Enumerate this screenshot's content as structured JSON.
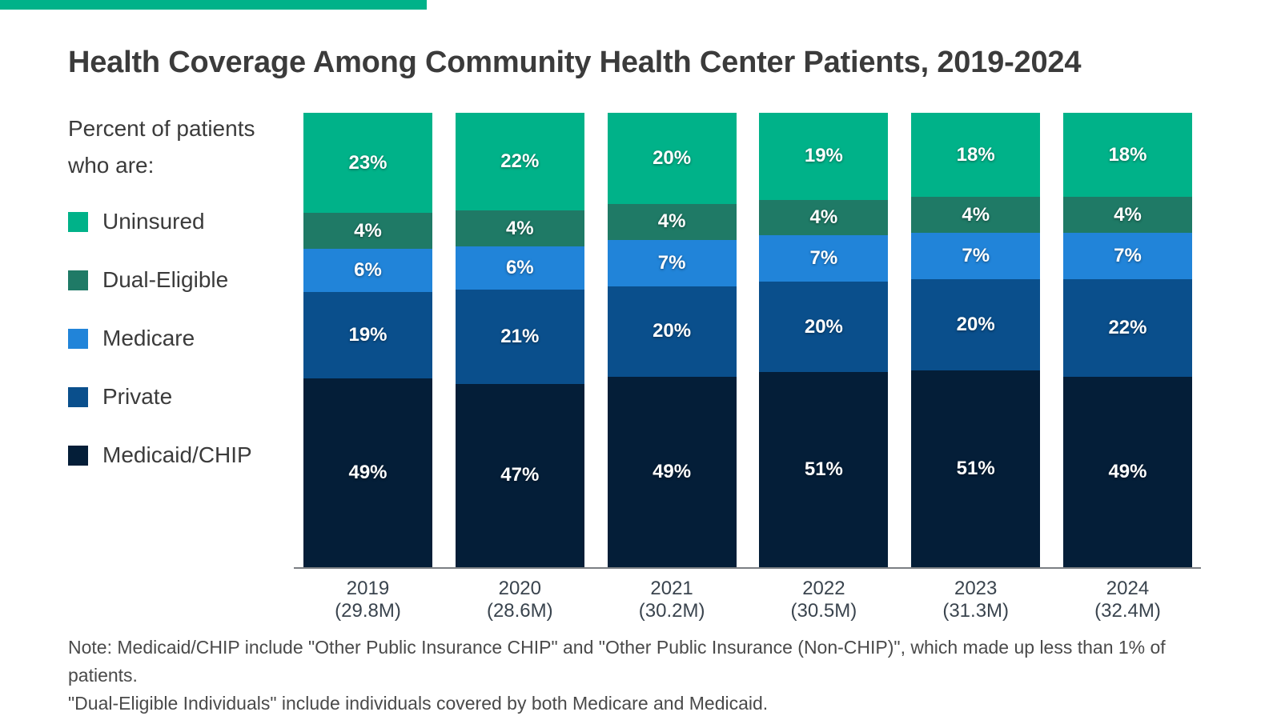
{
  "title": "Health Coverage Among Community Health Center Patients, 2019-2024",
  "accent_color": "#00B289",
  "legend": {
    "heading_line1": "Percent of patients",
    "heading_line2": "who are:",
    "items": [
      {
        "label": "Uninsured",
        "color": "#00B289"
      },
      {
        "label": "Dual-Eligible",
        "color": "#1F7A66"
      },
      {
        "label": "Medicare",
        "color": "#2184D9"
      },
      {
        "label": "Private",
        "color": "#0A4F8C"
      },
      {
        "label": "Medicaid/CHIP",
        "color": "#041E38"
      }
    ]
  },
  "chart_data": {
    "type": "bar",
    "stacked": true,
    "normalized_to_full_height": true,
    "title": "Health Coverage Among Community Health Center Patients, 2019-2024",
    "categories": [
      "2019",
      "2020",
      "2021",
      "2022",
      "2023",
      "2024"
    ],
    "category_sublabels": [
      "(29.8M)",
      "(28.6M)",
      "(30.2M)",
      "(30.5M)",
      "(31.3M)",
      "(32.4M)"
    ],
    "series": [
      {
        "name": "Uninsured",
        "color": "#00B289",
        "values": [
          23,
          22,
          20,
          19,
          18,
          18
        ]
      },
      {
        "name": "Dual-Eligible",
        "color": "#1F7A66",
        "values": [
          4,
          4,
          4,
          4,
          4,
          4
        ]
      },
      {
        "name": "Medicare",
        "color": "#2184D9",
        "values": [
          6,
          6,
          7,
          7,
          7,
          7
        ]
      },
      {
        "name": "Private",
        "color": "#0A4F8C",
        "values": [
          19,
          21,
          20,
          20,
          20,
          22
        ]
      },
      {
        "name": "Medicaid/CHIP",
        "color": "#041E38",
        "values": [
          49,
          47,
          49,
          51,
          51,
          49
        ]
      }
    ],
    "value_suffix": "%",
    "xlabel": "",
    "ylabel": "Percent of patients",
    "ylim": [
      0,
      100
    ],
    "grid": false,
    "legend_position": "left"
  },
  "note_line1": "Note: Medicaid/CHIP include \"Other Public Insurance CHIP\" and \"Other Public Insurance (Non-CHIP)\", which made up less than 1% of patients.",
  "note_line2": "\"Dual-Eligible Individuals\" include individuals covered by both Medicare and Medicaid."
}
